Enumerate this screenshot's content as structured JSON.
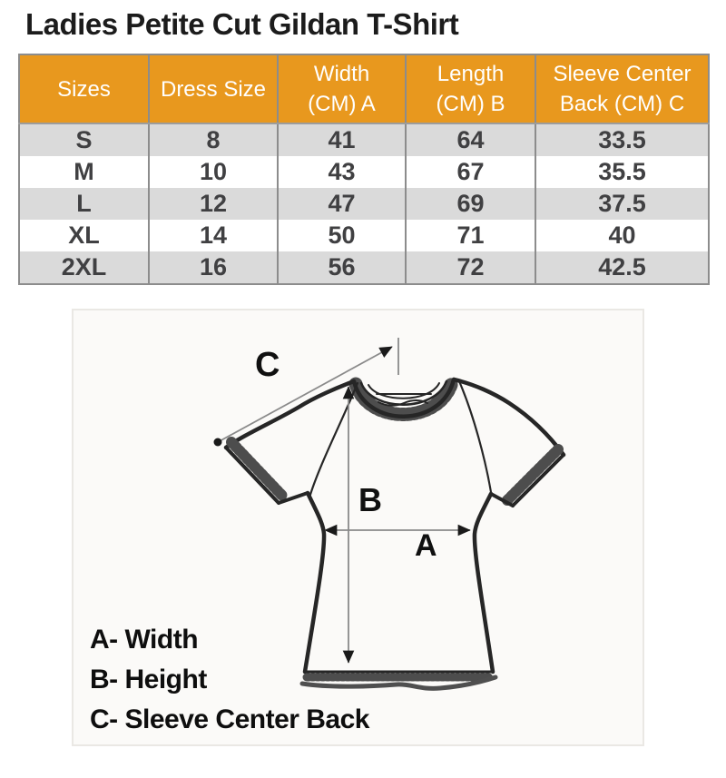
{
  "title": "Ladies Petite Cut Gildan T-Shirt",
  "table": {
    "columns": [
      {
        "line1": "Sizes",
        "line2": ""
      },
      {
        "line1": "Dress Size",
        "line2": ""
      },
      {
        "line1": "Width",
        "line2": "(CM) A"
      },
      {
        "line1": "Length",
        "line2": "(CM) B"
      },
      {
        "line1": "Sleeve Center",
        "line2": "Back (CM) C"
      }
    ],
    "row_keys": [
      "size",
      "dress_size",
      "width_cm_a",
      "length_cm_b",
      "sleeve_center_back_cm_c"
    ],
    "rows": [
      {
        "size": "S",
        "dress_size": "8",
        "width_cm_a": "41",
        "length_cm_b": "64",
        "sleeve_center_back_cm_c": "33.5"
      },
      {
        "size": "M",
        "dress_size": "10",
        "width_cm_a": "43",
        "length_cm_b": "67",
        "sleeve_center_back_cm_c": "35.5"
      },
      {
        "size": "L",
        "dress_size": "12",
        "width_cm_a": "47",
        "length_cm_b": "69",
        "sleeve_center_back_cm_c": "37.5"
      },
      {
        "size": "XL",
        "dress_size": "14",
        "width_cm_a": "50",
        "length_cm_b": "71",
        "sleeve_center_back_cm_c": "40"
      },
      {
        "size": "2XL",
        "dress_size": "16",
        "width_cm_a": "56",
        "length_cm_b": "72",
        "sleeve_center_back_cm_c": "42.5"
      }
    ]
  },
  "diagram": {
    "labels": {
      "a": "A",
      "b": "B",
      "c": "C"
    },
    "legend": [
      "A- Width",
      "B- Height",
      "C- Sleeve Center Back"
    ]
  },
  "colors": {
    "header_bg": "#E8981E",
    "header_text": "#FFFFFF",
    "row_alt_bg": "#DADADA",
    "row_bg": "#FFFFFF",
    "data_text": "#404042",
    "table_border": "#8C8C8C",
    "title_text": "#1C1C1C",
    "diagram_bg": "#FBFAF8",
    "diagram_border": "#EAE8E4",
    "sketch_stroke": "#262626",
    "measure_line": "#8A8A8A"
  },
  "chart_data": {
    "type": "table",
    "title": "Ladies Petite Cut Gildan T-Shirt",
    "columns": [
      "Sizes",
      "Dress Size",
      "Width (CM) A",
      "Length (CM) B",
      "Sleeve Center Back (CM) C"
    ],
    "rows": [
      [
        "S",
        "8",
        "41",
        "64",
        "33.5"
      ],
      [
        "M",
        "10",
        "43",
        "67",
        "35.5"
      ],
      [
        "L",
        "12",
        "47",
        "69",
        "37.5"
      ],
      [
        "XL",
        "14",
        "50",
        "71",
        "40"
      ],
      [
        "2XL",
        "16",
        "56",
        "72",
        "42.5"
      ]
    ],
    "units": "CM",
    "legend": [
      "A- Width",
      "B- Height",
      "C- Sleeve Center Back"
    ]
  }
}
